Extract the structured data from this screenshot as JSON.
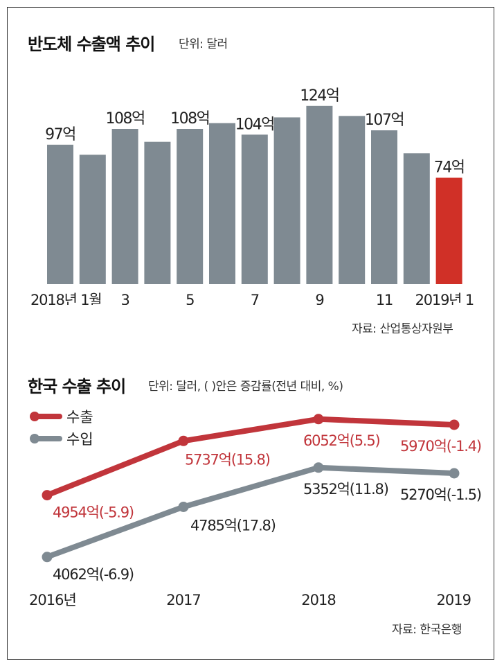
{
  "panel1": {
    "title": "반도체 수출액 추이",
    "unit": "단위: 달러",
    "source": "자료: 산업통상자원부"
  },
  "panel2": {
    "title": "한국 수출 추이",
    "unit": "단위: 달러, ( )안은 증감률(전년 대비, %)",
    "source": "자료: 한국은행"
  },
  "colors": {
    "bar": "#7f8a92",
    "highlight": "#d03027",
    "export": "#c1353b",
    "import": "#7f8a92"
  },
  "chart_data": [
    {
      "type": "bar",
      "title": "반도체 수출액 추이",
      "categories": [
        "2018-01",
        "2018-02",
        "2018-03",
        "2018-04",
        "2018-05",
        "2018-06",
        "2018-07",
        "2018-08",
        "2018-09",
        "2018-10",
        "2018-11",
        "2018-12",
        "2019-01"
      ],
      "tick_labels": [
        "2018년 1월",
        "",
        "3",
        "",
        "5",
        "",
        "7",
        "",
        "9",
        "",
        "11",
        "",
        "2019년 1"
      ],
      "values": [
        97,
        90,
        108,
        99,
        108,
        112,
        104,
        116,
        124,
        117,
        107,
        91,
        74
      ],
      "data_labels": [
        "97억",
        "",
        "108억",
        "",
        "108억",
        "",
        "104억",
        "",
        "124억",
        "",
        "107억",
        "",
        "74억"
      ],
      "highlight_index": 12,
      "ylim": [
        0,
        135
      ]
    },
    {
      "type": "line",
      "title": "한국 수출 추이",
      "x": [
        "2016년",
        "2017",
        "2018",
        "2019"
      ],
      "ylim": [
        3800,
        6300
      ],
      "series": [
        {
          "name": "수출",
          "values": [
            4954,
            5737,
            6052,
            5970
          ],
          "labels": [
            "4954억(-5.9)",
            "5737억(15.8)",
            "6052억(5.5)",
            "5970억(-1.4)"
          ]
        },
        {
          "name": "수입",
          "values": [
            4062,
            4785,
            5352,
            5270
          ],
          "labels": [
            "4062억(-6.9)",
            "4785억(17.8)",
            "5352억(11.8)",
            "5270억(-1.5)"
          ]
        }
      ]
    }
  ]
}
